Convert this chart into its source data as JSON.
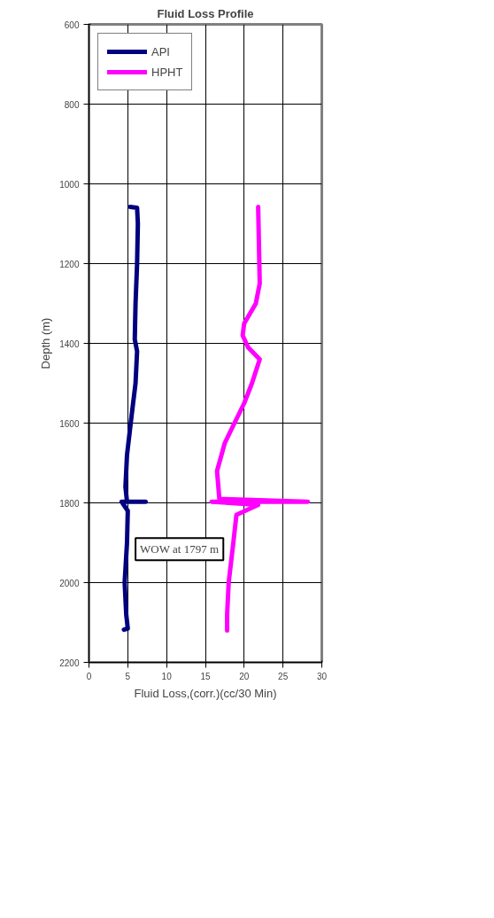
{
  "chart_data": {
    "type": "line",
    "title": "Fluid Loss Profile",
    "xlabel": "Fluid Loss,(corr.)(cc/30 Min)",
    "ylabel": "Depth (m)",
    "xlim": [
      0,
      30
    ],
    "xticks": [
      0,
      5,
      10,
      15,
      20,
      25,
      30
    ],
    "ylim": [
      2200,
      600
    ],
    "yticks": [
      600,
      800,
      1000,
      1200,
      1400,
      1600,
      1800,
      2000,
      2200
    ],
    "grid": true,
    "legend": "top left",
    "line_style": "solid",
    "marker": "none",
    "annotations": [
      "WOW at 1797 m"
    ],
    "series": [
      {
        "name": "API",
        "color": "#000080",
        "x": [
          5.3,
          6.2,
          6.3,
          6.2,
          6.0,
          5.9,
          6.2,
          6.0,
          5.5,
          4.9,
          4.7,
          4.9,
          7.3,
          4.2,
          5.0,
          4.9,
          4.6,
          4.8,
          5.0,
          4.5
        ],
        "values": [
          1058,
          1060,
          1100,
          1200,
          1300,
          1390,
          1420,
          1500,
          1580,
          1680,
          1760,
          1797,
          1797,
          1797,
          1820,
          1900,
          2000,
          2080,
          2115,
          2118
        ]
      },
      {
        "name": "HPHT",
        "color": "#ff00ff",
        "x": [
          21.8,
          21.9,
          22.0,
          21.5,
          20.0,
          19.8,
          20.5,
          22.0,
          21.0,
          20.0,
          17.5,
          16.5,
          16.8,
          28.2,
          15.8,
          21.8,
          19.0,
          18.6,
          18.0,
          17.8,
          17.8
        ],
        "values": [
          1058,
          1150,
          1250,
          1300,
          1350,
          1380,
          1410,
          1440,
          1500,
          1550,
          1650,
          1720,
          1790,
          1797,
          1797,
          1805,
          1830,
          1900,
          2000,
          2080,
          2120
        ]
      }
    ]
  }
}
